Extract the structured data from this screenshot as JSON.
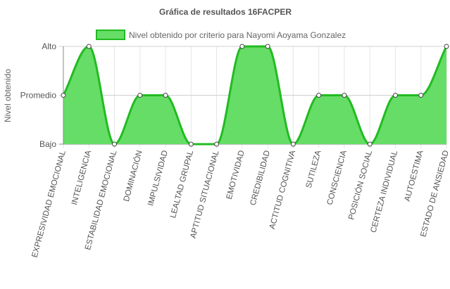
{
  "chart_data": {
    "type": "area",
    "title": "Gráfica de resultados 16FACPER",
    "ylabel": "Nivel obtenido",
    "xlabel": "",
    "y_levels": [
      "Bajo",
      "Promedio",
      "Alto"
    ],
    "ylim": [
      0,
      2
    ],
    "grid": true,
    "legend_position": "top",
    "categories": [
      "EXPRESIVIDAD EMOCIONAL",
      "INTELIGENCIA",
      "ESTABILIDAD EMOCIONAL",
      "DOMINACIÓN",
      "IMPULSIVIDAD",
      "LEALTAD GRUPAL",
      "APTITUD SITUACIONAL",
      "EMOTIVIDAD",
      "CREDIBILIDAD",
      "ACTITUD COGNITIVA",
      "SUTILEZA",
      "CONSCIENCIA",
      "POSICIÓN SOCIAL",
      "CERTEZA INDIVIDUAL",
      "AUTOESTIMA",
      "ESTADO DE ANSIEDAD"
    ],
    "series": [
      {
        "name": "Nivel obtenido por criterio para Nayomi Aoyama Gonzalez",
        "values": [
          1,
          2,
          0,
          1,
          1,
          0,
          0,
          2,
          2,
          0,
          1,
          1,
          0,
          1,
          1,
          2
        ]
      }
    ],
    "colors": {
      "line": "#22bb22",
      "fill": "#66dd66",
      "point_fill": "#ffffff",
      "point_stroke": "#444444",
      "grid": "#e6e6e6",
      "axis": "#888888",
      "text": "#555555"
    }
  }
}
